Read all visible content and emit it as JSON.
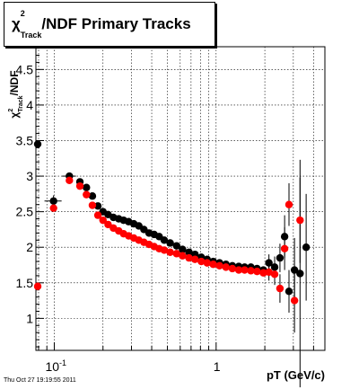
{
  "title": {
    "chi": "χ",
    "sup": "2",
    "sub": "Track",
    "rest": "/NDF  Primary Tracks"
  },
  "ylabel": {
    "chi": "χ",
    "sup": "2",
    "sub": "Track",
    "rest": "/NDF"
  },
  "footer": "Thu Oct 27 19:19:55 2011",
  "chart_data": {
    "type": "scatter",
    "xlabel": "pT (GeV/c)",
    "x_scale": "log",
    "xlim": [
      0.077,
      4.7
    ],
    "ylim": [
      0.55,
      4.82
    ],
    "x_tick_labels": [
      {
        "value": 0.1,
        "base": "10",
        "exp": "-1"
      },
      {
        "value": 1,
        "base": "1",
        "exp": ""
      }
    ],
    "y_ticks": [
      1,
      1.5,
      2,
      2.5,
      3,
      3.5,
      4,
      4.5
    ],
    "y_tick_labels": [
      "1",
      "1.5",
      "2",
      "2.5",
      "3",
      "3.5",
      "4",
      "4.5"
    ],
    "grid": true,
    "series": [
      {
        "color": "#000000",
        "points": [
          {
            "x": 0.079,
            "y": 3.45
          },
          {
            "x": 0.099,
            "y": 2.65,
            "yerr": 0.08,
            "xerr": 0.012
          },
          {
            "x": 0.124,
            "y": 3.0,
            "xerr": 0.012
          },
          {
            "x": 0.144,
            "y": 2.92
          },
          {
            "x": 0.158,
            "y": 2.84
          },
          {
            "x": 0.172,
            "y": 2.72
          },
          {
            "x": 0.186,
            "y": 2.58
          },
          {
            "x": 0.2,
            "y": 2.5
          },
          {
            "x": 0.215,
            "y": 2.46
          },
          {
            "x": 0.232,
            "y": 2.42
          },
          {
            "x": 0.25,
            "y": 2.4
          },
          {
            "x": 0.268,
            "y": 2.38
          },
          {
            "x": 0.288,
            "y": 2.36
          },
          {
            "x": 0.31,
            "y": 2.33
          },
          {
            "x": 0.333,
            "y": 2.3
          },
          {
            "x": 0.358,
            "y": 2.25
          },
          {
            "x": 0.385,
            "y": 2.2
          },
          {
            "x": 0.414,
            "y": 2.18
          },
          {
            "x": 0.445,
            "y": 2.15
          },
          {
            "x": 0.478,
            "y": 2.1
          },
          {
            "x": 0.52,
            "y": 2.06
          },
          {
            "x": 0.57,
            "y": 2.02
          },
          {
            "x": 0.62,
            "y": 1.97
          },
          {
            "x": 0.68,
            "y": 1.93
          },
          {
            "x": 0.74,
            "y": 1.9
          },
          {
            "x": 0.81,
            "y": 1.86
          },
          {
            "x": 0.88,
            "y": 1.83
          },
          {
            "x": 0.96,
            "y": 1.8
          },
          {
            "x": 1.05,
            "y": 1.78
          },
          {
            "x": 1.15,
            "y": 1.76
          },
          {
            "x": 1.26,
            "y": 1.74
          },
          {
            "x": 1.38,
            "y": 1.73
          },
          {
            "x": 1.5,
            "y": 1.72
          },
          {
            "x": 1.64,
            "y": 1.72
          },
          {
            "x": 1.79,
            "y": 1.7
          },
          {
            "x": 1.96,
            "y": 1.68
          },
          {
            "x": 2.12,
            "y": 1.78,
            "yerr": 0.12
          },
          {
            "x": 2.3,
            "y": 1.72,
            "yerr": 0.15
          },
          {
            "x": 2.48,
            "y": 1.85,
            "yerr": 0.2
          },
          {
            "x": 2.65,
            "y": 2.15,
            "yerr": 0.3
          },
          {
            "x": 2.82,
            "y": 1.38,
            "yerr": 0.3
          },
          {
            "x": 3.05,
            "y": 1.68,
            "yerr": 0.45
          },
          {
            "x": 3.3,
            "y": 1.63,
            "yerr": 1.6
          },
          {
            "x": 3.6,
            "y": 2.0,
            "yerr": 0.75
          }
        ]
      },
      {
        "color": "#ff0000",
        "points": [
          {
            "x": 0.079,
            "y": 1.45
          },
          {
            "x": 0.099,
            "y": 2.55
          },
          {
            "x": 0.124,
            "y": 2.94
          },
          {
            "x": 0.144,
            "y": 2.86
          },
          {
            "x": 0.158,
            "y": 2.74
          },
          {
            "x": 0.172,
            "y": 2.59
          },
          {
            "x": 0.186,
            "y": 2.45
          },
          {
            "x": 0.2,
            "y": 2.38
          },
          {
            "x": 0.215,
            "y": 2.32
          },
          {
            "x": 0.232,
            "y": 2.27
          },
          {
            "x": 0.25,
            "y": 2.23
          },
          {
            "x": 0.268,
            "y": 2.19
          },
          {
            "x": 0.288,
            "y": 2.16
          },
          {
            "x": 0.31,
            "y": 2.13
          },
          {
            "x": 0.333,
            "y": 2.1
          },
          {
            "x": 0.358,
            "y": 2.07
          },
          {
            "x": 0.385,
            "y": 2.04
          },
          {
            "x": 0.414,
            "y": 2.01
          },
          {
            "x": 0.445,
            "y": 1.98
          },
          {
            "x": 0.478,
            "y": 1.96
          },
          {
            "x": 0.52,
            "y": 1.93
          },
          {
            "x": 0.57,
            "y": 1.91
          },
          {
            "x": 0.62,
            "y": 1.88
          },
          {
            "x": 0.68,
            "y": 1.85
          },
          {
            "x": 0.74,
            "y": 1.83
          },
          {
            "x": 0.81,
            "y": 1.8
          },
          {
            "x": 0.88,
            "y": 1.78
          },
          {
            "x": 0.96,
            "y": 1.76
          },
          {
            "x": 1.05,
            "y": 1.74
          },
          {
            "x": 1.15,
            "y": 1.72
          },
          {
            "x": 1.26,
            "y": 1.7
          },
          {
            "x": 1.38,
            "y": 1.68
          },
          {
            "x": 1.5,
            "y": 1.68
          },
          {
            "x": 1.64,
            "y": 1.67
          },
          {
            "x": 1.79,
            "y": 1.66
          },
          {
            "x": 1.96,
            "y": 1.64
          },
          {
            "x": 2.12,
            "y": 1.65,
            "yerr": 0.12
          },
          {
            "x": 2.3,
            "y": 1.62,
            "yerr": 0.15
          },
          {
            "x": 2.48,
            "y": 1.42,
            "yerr": 0.2
          },
          {
            "x": 2.65,
            "y": 1.98,
            "yerr": 0.3
          },
          {
            "x": 2.82,
            "y": 2.6,
            "yerr": 0.3
          },
          {
            "x": 3.05,
            "y": 1.25,
            "yerr": 0.45
          },
          {
            "x": 3.3,
            "y": 2.38,
            "yerr": 0.6
          }
        ]
      }
    ]
  }
}
